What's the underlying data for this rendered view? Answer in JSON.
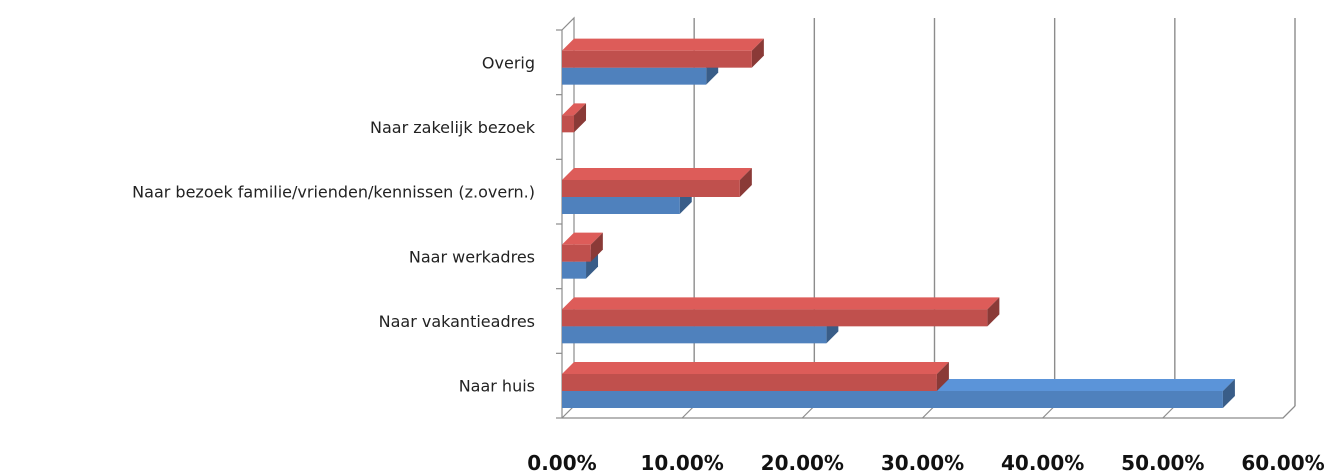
{
  "chart_data": {
    "type": "bar",
    "orientation": "horizontal",
    "style": "3d-clustered",
    "categories": [
      "Naar huis",
      "Naar vakantieadres",
      "Naar werkadres",
      "Naar bezoek familie/vrienden/kennissen (z.overn.)",
      "Naar zakelijk bezoek",
      "Overig"
    ],
    "series": [
      {
        "color": "#4f81bd",
        "values": [
          55.0,
          22.0,
          2.0,
          9.8,
          0.0,
          12.0
        ]
      },
      {
        "color": "#c0504d",
        "values": [
          31.2,
          35.4,
          2.4,
          14.8,
          1.0,
          15.8
        ]
      }
    ],
    "xlim": [
      0,
      60
    ],
    "xticks": [
      "0.00%",
      "10.00%",
      "20.00%",
      "30.00%",
      "40.00%",
      "50.00%",
      "60.00%"
    ],
    "grid": true,
    "legend": "none",
    "title": "",
    "xlabel": "",
    "ylabel": ""
  }
}
